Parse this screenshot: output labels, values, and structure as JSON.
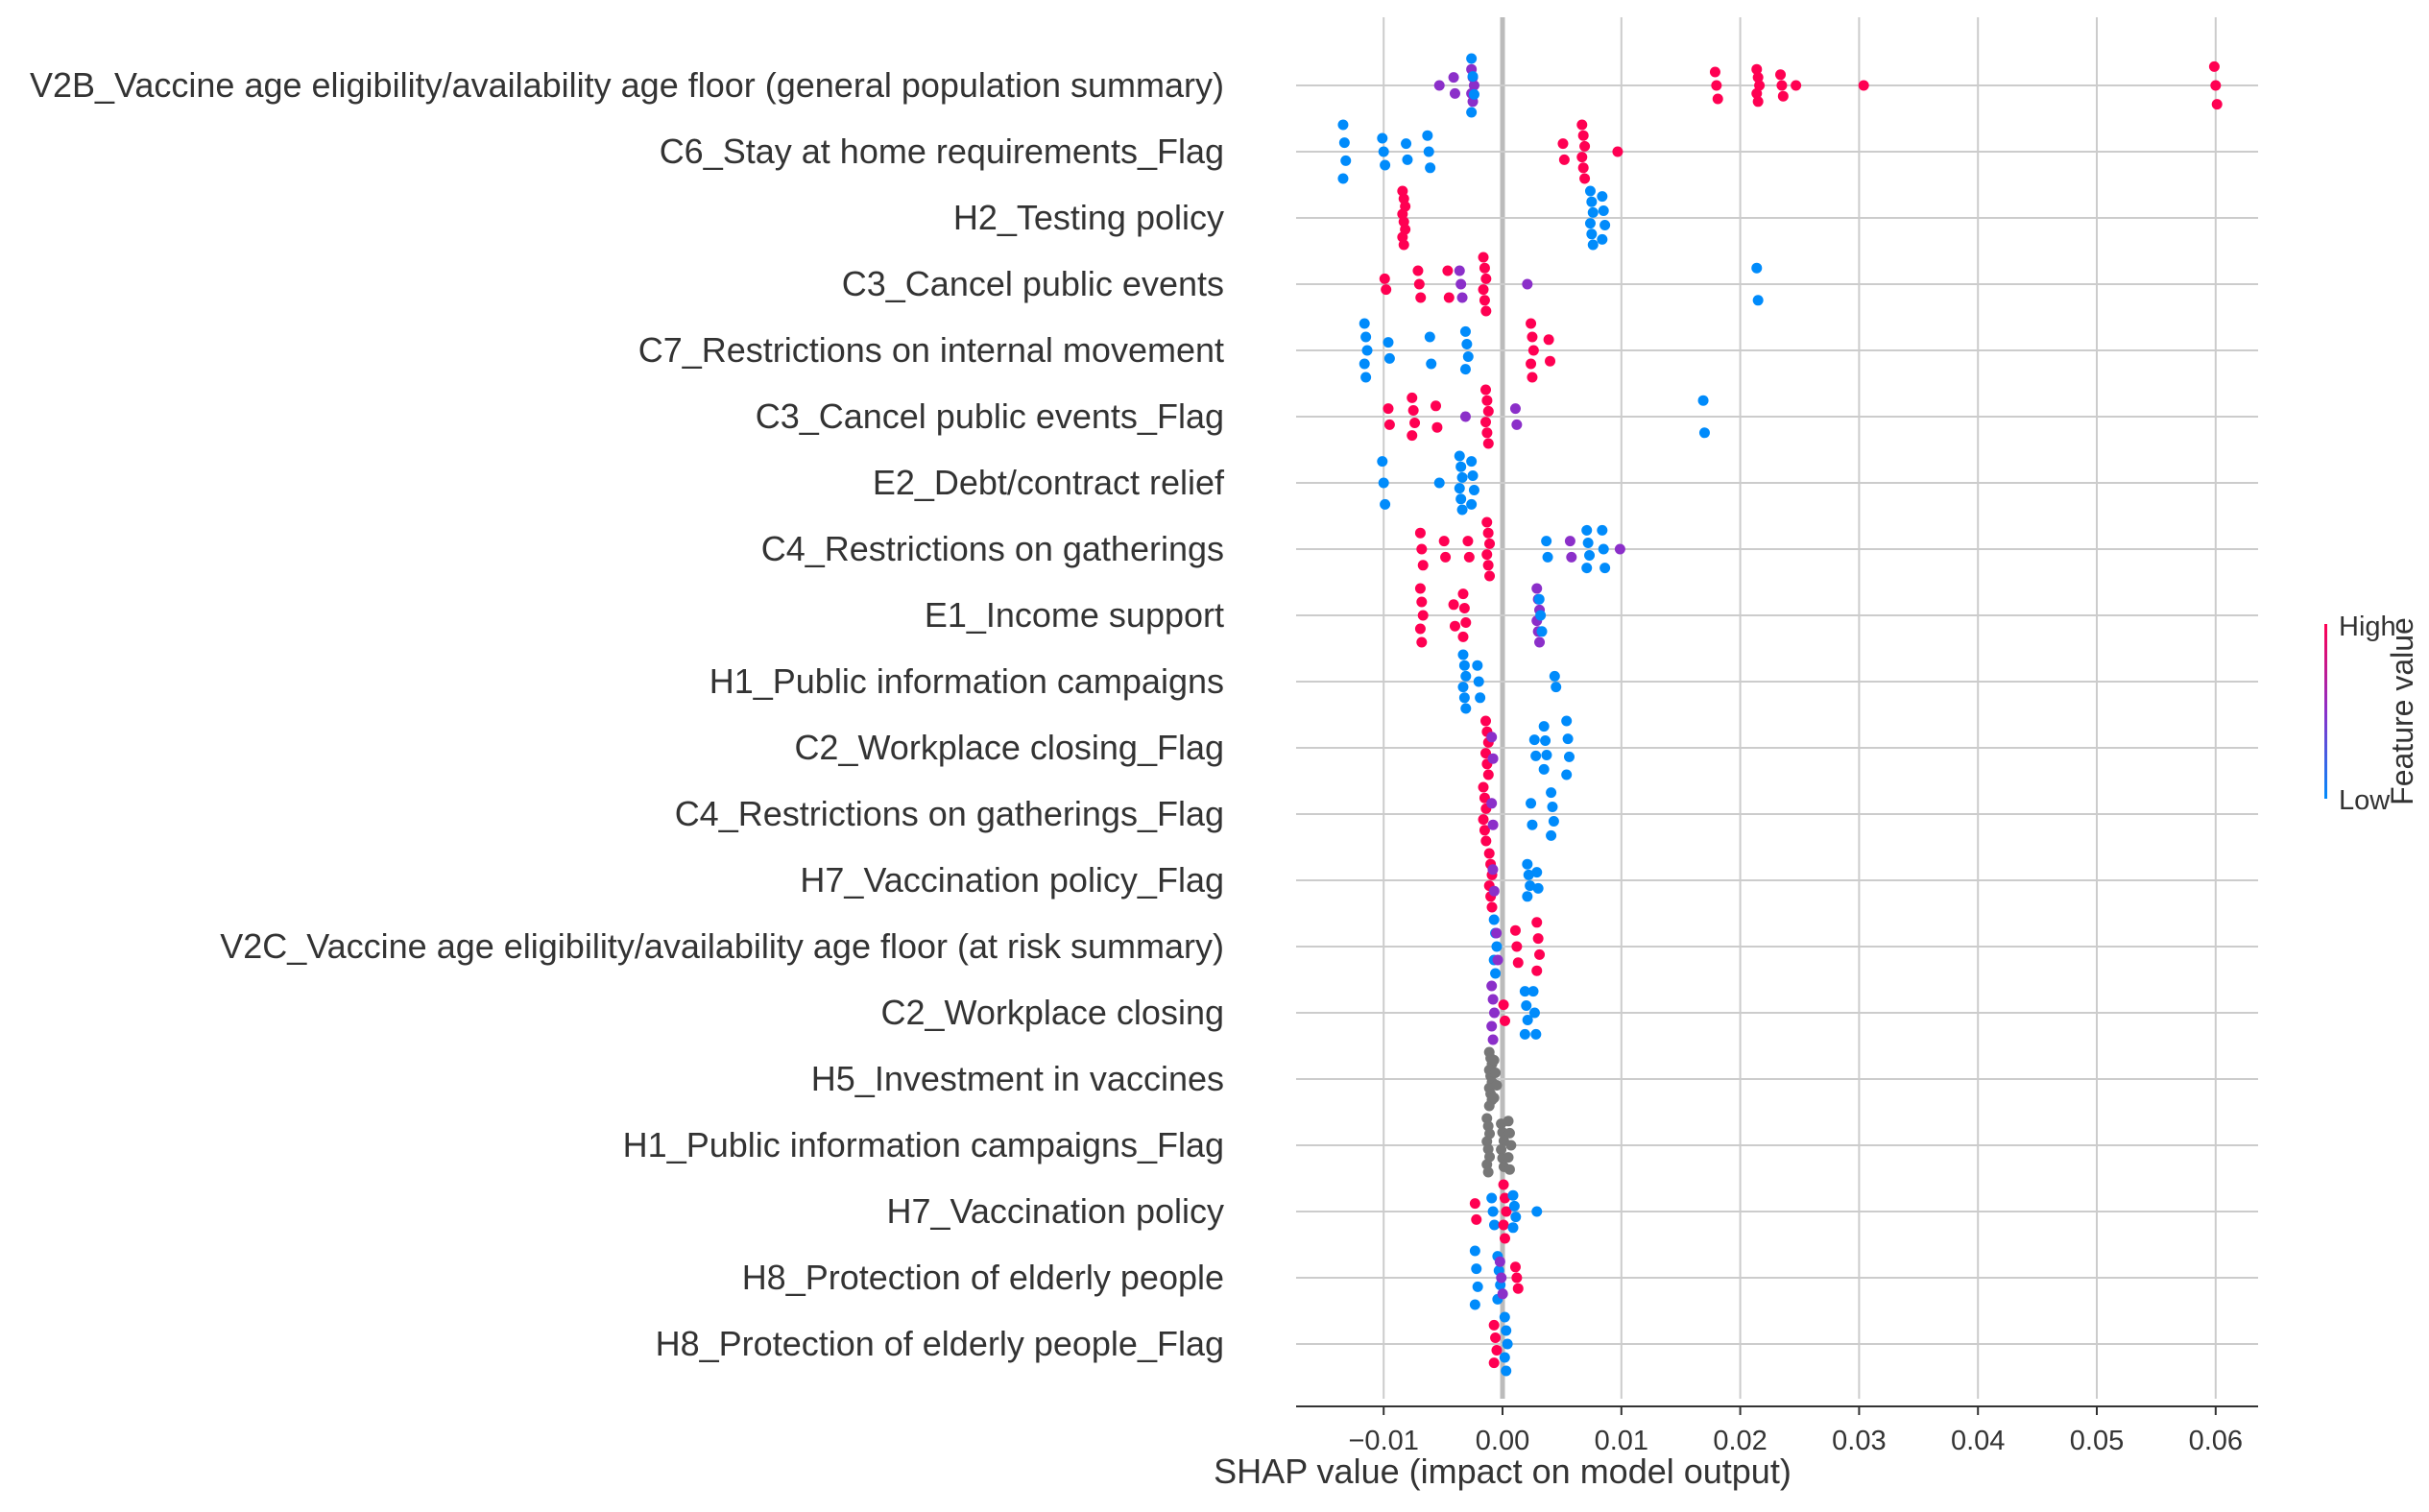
{
  "chart_data": {
    "type": "scatter",
    "subtype": "shap-beeswarm",
    "xlabel": "SHAP value (impact on model output)",
    "x_ticks": [
      -0.01,
      0.0,
      0.01,
      0.02,
      0.03,
      0.04,
      0.05,
      0.06
    ],
    "x_tick_labels": [
      "−0.01",
      "0.00",
      "0.01",
      "0.02",
      "0.03",
      "0.04",
      "0.05",
      "0.06"
    ],
    "xlim": [
      -0.017,
      0.064
    ],
    "grid": true,
    "zero_line": true,
    "colorbar": {
      "title": "Feature value",
      "high_label": "High",
      "low_label": "Low",
      "high_color": "#ff0052",
      "mid_color": "#8b2fc9",
      "low_color": "#008bfb",
      "no_value_color": "#777777"
    },
    "features": [
      {
        "name": "V2B_Vaccine age eligibility/availability age floor (general population summary)",
        "groups": [
          {
            "x": -0.0025,
            "color": "mid",
            "n": 5,
            "spread": 0.6
          },
          {
            "x": -0.0025,
            "color": "low",
            "n": 4,
            "spread": 1.0
          },
          {
            "x": -0.0052,
            "color": "mid",
            "n": 1,
            "spread": 0.1
          },
          {
            "x": -0.004,
            "color": "mid",
            "n": 2,
            "spread": 0.3
          },
          {
            "x": 0.018,
            "color": "high",
            "n": 3,
            "spread": 0.5
          },
          {
            "x": 0.0215,
            "color": "high",
            "n": 5,
            "spread": 0.6
          },
          {
            "x": 0.0235,
            "color": "high",
            "n": 3,
            "spread": 0.4
          },
          {
            "x": 0.0248,
            "color": "high",
            "n": 1,
            "spread": 0.1
          },
          {
            "x": 0.0305,
            "color": "high",
            "n": 1,
            "spread": 0.1
          },
          {
            "x": 0.06,
            "color": "high",
            "n": 3,
            "spread": 0.7
          }
        ]
      },
      {
        "name": "C6_Stay at home requirements_Flag",
        "groups": [
          {
            "x": -0.0133,
            "color": "low",
            "n": 4,
            "spread": 1.0
          },
          {
            "x": -0.01,
            "color": "low",
            "n": 3,
            "spread": 0.5
          },
          {
            "x": -0.008,
            "color": "low",
            "n": 2,
            "spread": 0.3
          },
          {
            "x": -0.0062,
            "color": "low",
            "n": 3,
            "spread": 0.6
          },
          {
            "x": 0.0052,
            "color": "high",
            "n": 2,
            "spread": 0.3
          },
          {
            "x": 0.0068,
            "color": "high",
            "n": 6,
            "spread": 1.0
          },
          {
            "x": 0.0098,
            "color": "high",
            "n": 1,
            "spread": 0.1
          }
        ]
      },
      {
        "name": "H2_Testing policy",
        "groups": [
          {
            "x": -0.0083,
            "color": "high",
            "n": 8,
            "spread": 1.0
          },
          {
            "x": 0.0075,
            "color": "low",
            "n": 6,
            "spread": 1.0
          },
          {
            "x": 0.0085,
            "color": "low",
            "n": 4,
            "spread": 0.8
          }
        ]
      },
      {
        "name": "C3_Cancel public events",
        "groups": [
          {
            "x": -0.0098,
            "color": "high",
            "n": 2,
            "spread": 0.2
          },
          {
            "x": -0.007,
            "color": "high",
            "n": 3,
            "spread": 0.5
          },
          {
            "x": -0.0045,
            "color": "high",
            "n": 2,
            "spread": 0.5
          },
          {
            "x": -0.0035,
            "color": "mid",
            "n": 3,
            "spread": 0.5
          },
          {
            "x": -0.0015,
            "color": "high",
            "n": 6,
            "spread": 1.0
          },
          {
            "x": 0.0022,
            "color": "mid",
            "n": 1,
            "spread": 0.2
          },
          {
            "x": 0.0215,
            "color": "low",
            "n": 2,
            "spread": 0.6
          }
        ]
      },
      {
        "name": "C7_Restrictions on internal movement",
        "groups": [
          {
            "x": -0.0115,
            "color": "low",
            "n": 5,
            "spread": 1.0
          },
          {
            "x": -0.0095,
            "color": "low",
            "n": 2,
            "spread": 0.3
          },
          {
            "x": -0.006,
            "color": "low",
            "n": 2,
            "spread": 0.5
          },
          {
            "x": -0.003,
            "color": "low",
            "n": 4,
            "spread": 0.7
          },
          {
            "x": 0.0025,
            "color": "high",
            "n": 5,
            "spread": 1.0
          },
          {
            "x": 0.004,
            "color": "high",
            "n": 2,
            "spread": 0.4
          }
        ]
      },
      {
        "name": "C3_Cancel public events_Flag",
        "groups": [
          {
            "x": -0.0095,
            "color": "high",
            "n": 2,
            "spread": 0.3
          },
          {
            "x": -0.0075,
            "color": "high",
            "n": 4,
            "spread": 0.7
          },
          {
            "x": -0.0055,
            "color": "high",
            "n": 2,
            "spread": 0.4
          },
          {
            "x": -0.003,
            "color": "mid",
            "n": 1,
            "spread": 0.2
          },
          {
            "x": -0.0013,
            "color": "high",
            "n": 6,
            "spread": 1.0
          },
          {
            "x": 0.0012,
            "color": "mid",
            "n": 2,
            "spread": 0.3
          },
          {
            "x": 0.017,
            "color": "low",
            "n": 2,
            "spread": 0.6
          }
        ]
      },
      {
        "name": "E2_Debt/contract relief",
        "groups": [
          {
            "x": -0.01,
            "color": "low",
            "n": 3,
            "spread": 0.8
          },
          {
            "x": -0.0052,
            "color": "low",
            "n": 1,
            "spread": 0.2
          },
          {
            "x": -0.0035,
            "color": "low",
            "n": 6,
            "spread": 1.0
          },
          {
            "x": -0.0025,
            "color": "low",
            "n": 4,
            "spread": 0.8
          }
        ]
      },
      {
        "name": "C4_Restrictions on gatherings",
        "groups": [
          {
            "x": -0.0068,
            "color": "high",
            "n": 3,
            "spread": 0.6
          },
          {
            "x": -0.0048,
            "color": "high",
            "n": 2,
            "spread": 0.3
          },
          {
            "x": -0.0028,
            "color": "high",
            "n": 2,
            "spread": 0.3
          },
          {
            "x": -0.0012,
            "color": "high",
            "n": 6,
            "spread": 1.0
          },
          {
            "x": 0.0038,
            "color": "low",
            "n": 2,
            "spread": 0.3
          },
          {
            "x": 0.0058,
            "color": "mid",
            "n": 2,
            "spread": 0.3
          },
          {
            "x": 0.0072,
            "color": "low",
            "n": 4,
            "spread": 0.7
          },
          {
            "x": 0.0085,
            "color": "low",
            "n": 3,
            "spread": 0.7
          },
          {
            "x": 0.01,
            "color": "mid",
            "n": 1,
            "spread": 0.1
          }
        ]
      },
      {
        "name": "E1_Income support",
        "groups": [
          {
            "x": -0.0068,
            "color": "high",
            "n": 5,
            "spread": 1.0
          },
          {
            "x": -0.004,
            "color": "high",
            "n": 2,
            "spread": 0.4
          },
          {
            "x": -0.0032,
            "color": "high",
            "n": 4,
            "spread": 0.8
          },
          {
            "x": 0.003,
            "color": "mid",
            "n": 6,
            "spread": 1.0
          },
          {
            "x": 0.0032,
            "color": "low",
            "n": 3,
            "spread": 0.6
          }
        ]
      },
      {
        "name": "H1_Public information campaigns",
        "groups": [
          {
            "x": -0.0032,
            "color": "low",
            "n": 6,
            "spread": 1.0
          },
          {
            "x": -0.002,
            "color": "low",
            "n": 3,
            "spread": 0.6
          },
          {
            "x": 0.0045,
            "color": "low",
            "n": 2,
            "spread": 0.2
          }
        ]
      },
      {
        "name": "C2_Workplace closing_Flag",
        "groups": [
          {
            "x": -0.0013,
            "color": "high",
            "n": 6,
            "spread": 1.0
          },
          {
            "x": -0.0008,
            "color": "mid",
            "n": 2,
            "spread": 0.4
          },
          {
            "x": 0.0028,
            "color": "low",
            "n": 2,
            "spread": 0.3
          },
          {
            "x": 0.0036,
            "color": "low",
            "n": 4,
            "spread": 0.8
          },
          {
            "x": 0.0055,
            "color": "low",
            "n": 4,
            "spread": 1.0
          }
        ]
      },
      {
        "name": "C4_Restrictions on gatherings_Flag",
        "groups": [
          {
            "x": -0.0015,
            "color": "high",
            "n": 6,
            "spread": 1.0
          },
          {
            "x": -0.0008,
            "color": "mid",
            "n": 2,
            "spread": 0.4
          },
          {
            "x": 0.0025,
            "color": "low",
            "n": 2,
            "spread": 0.4
          },
          {
            "x": 0.0042,
            "color": "low",
            "n": 4,
            "spread": 0.8
          }
        ]
      },
      {
        "name": "H7_Vaccination policy_Flag",
        "groups": [
          {
            "x": -0.001,
            "color": "high",
            "n": 6,
            "spread": 1.0
          },
          {
            "x": -0.0007,
            "color": "mid",
            "n": 2,
            "spread": 0.4
          },
          {
            "x": 0.0022,
            "color": "low",
            "n": 4,
            "spread": 0.6
          },
          {
            "x": 0.003,
            "color": "low",
            "n": 2,
            "spread": 0.3
          }
        ]
      },
      {
        "name": "V2C_Vaccine age eligibility/availability age floor (at risk summary)",
        "groups": [
          {
            "x": -0.0006,
            "color": "low",
            "n": 5,
            "spread": 1.0
          },
          {
            "x": -0.0004,
            "color": "mid",
            "n": 2,
            "spread": 0.5
          },
          {
            "x": 0.0012,
            "color": "high",
            "n": 3,
            "spread": 0.6
          },
          {
            "x": 0.003,
            "color": "high",
            "n": 4,
            "spread": 0.9
          }
        ]
      },
      {
        "name": "C2_Workplace closing",
        "groups": [
          {
            "x": -0.0008,
            "color": "mid",
            "n": 5,
            "spread": 1.0
          },
          {
            "x": 0.0002,
            "color": "high",
            "n": 2,
            "spread": 0.3
          },
          {
            "x": 0.002,
            "color": "low",
            "n": 4,
            "spread": 0.8
          },
          {
            "x": 0.0027,
            "color": "low",
            "n": 3,
            "spread": 0.8
          }
        ]
      },
      {
        "name": "H5_Investment in vaccines",
        "groups": [
          {
            "x": -0.001,
            "color": "none",
            "n": 10,
            "spread": 1.0
          },
          {
            "x": -0.0006,
            "color": "none",
            "n": 4,
            "spread": 0.7
          }
        ]
      },
      {
        "name": "H1_Public information campaigns_Flag",
        "groups": [
          {
            "x": -0.0012,
            "color": "none",
            "n": 8,
            "spread": 1.0
          },
          {
            "x": 0.0,
            "color": "none",
            "n": 6,
            "spread": 0.8
          },
          {
            "x": 0.0006,
            "color": "none",
            "n": 5,
            "spread": 0.9
          }
        ]
      },
      {
        "name": "H7_Vaccination policy",
        "groups": [
          {
            "x": -0.0022,
            "color": "high",
            "n": 2,
            "spread": 0.3
          },
          {
            "x": -0.0008,
            "color": "low",
            "n": 3,
            "spread": 0.5
          },
          {
            "x": 0.0002,
            "color": "high",
            "n": 5,
            "spread": 1.0
          },
          {
            "x": 0.001,
            "color": "low",
            "n": 4,
            "spread": 0.6
          },
          {
            "x": 0.003,
            "color": "low",
            "n": 1,
            "spread": 0.2
          }
        ]
      },
      {
        "name": "H8_Protection of elderly people",
        "groups": [
          {
            "x": -0.0022,
            "color": "low",
            "n": 4,
            "spread": 1.0
          },
          {
            "x": -0.0003,
            "color": "low",
            "n": 4,
            "spread": 0.8
          },
          {
            "x": -0.0001,
            "color": "mid",
            "n": 3,
            "spread": 0.6
          },
          {
            "x": 0.0012,
            "color": "high",
            "n": 3,
            "spread": 0.4
          }
        ]
      },
      {
        "name": "H8_Protection of elderly people_Flag",
        "groups": [
          {
            "x": -0.0006,
            "color": "high",
            "n": 4,
            "spread": 0.7
          },
          {
            "x": 0.0003,
            "color": "low",
            "n": 5,
            "spread": 1.0
          }
        ]
      }
    ]
  }
}
